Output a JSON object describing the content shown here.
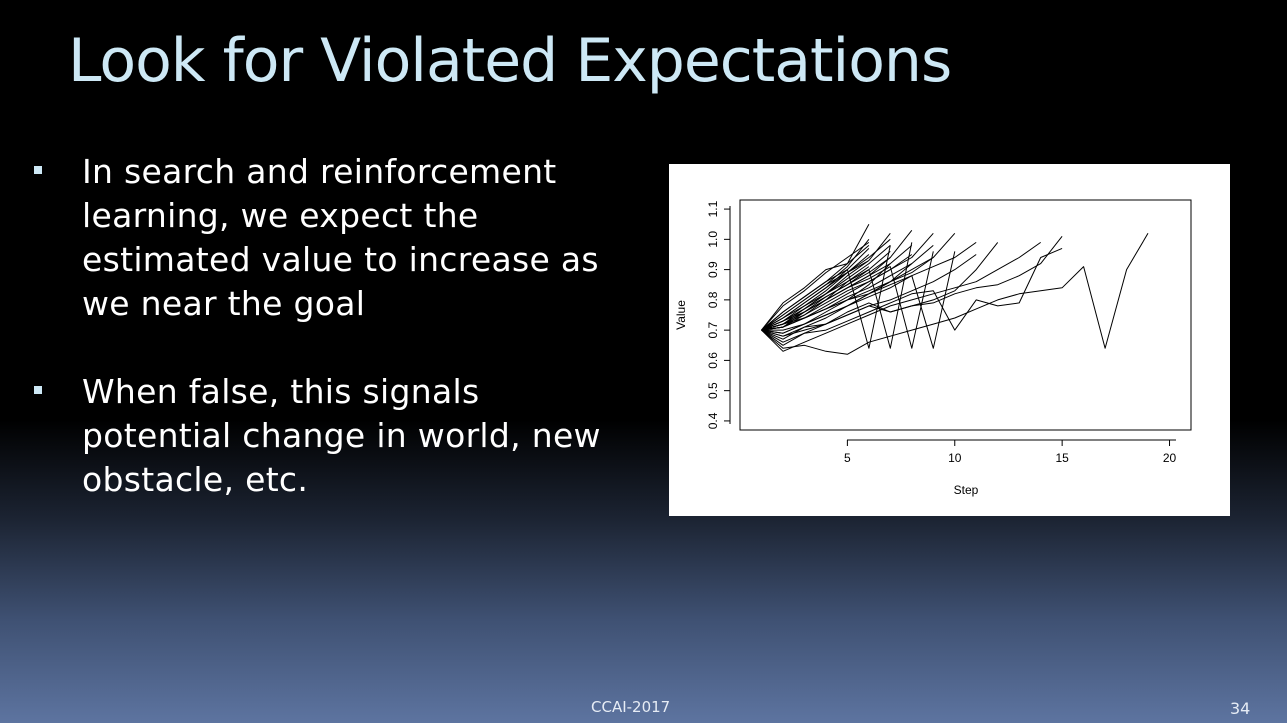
{
  "slide": {
    "title": "Look for Violated Expectations",
    "bullets": [
      "In search and reinforcement learning, we expect the estimated value to increase as we near the goal",
      "When false, this signals potential change in world, new obstacle, etc."
    ],
    "footer": "CCAI-2017",
    "page_number": "34"
  },
  "colors": {
    "background": "#000000",
    "title": "#cde8f5",
    "text": "#ffffff",
    "chart_line": "#000000"
  },
  "chart_data": {
    "type": "line",
    "title": "",
    "xlabel": "Step",
    "ylabel": "Value",
    "xlim": [
      0,
      21
    ],
    "ylim": [
      0.37,
      1.13
    ],
    "xticks": [
      5,
      10,
      15,
      20
    ],
    "yticks": [
      0.4,
      0.5,
      0.6,
      0.7,
      0.8,
      0.9,
      1.0,
      1.1
    ],
    "xtick_labels": [
      "5",
      "10",
      "15",
      "20"
    ],
    "ytick_labels": [
      "0.4",
      "0.5",
      "0.6",
      "0.7",
      "0.8",
      "0.9",
      "1.0",
      "1.1"
    ],
    "grid": false,
    "legend": "none",
    "series": [
      {
        "x": [
          1,
          2,
          3,
          4,
          5,
          6
        ],
        "values": [
          0.7,
          0.76,
          0.81,
          0.86,
          0.92,
          1.05
        ]
      },
      {
        "x": [
          1,
          2,
          3,
          4,
          5,
          6
        ],
        "values": [
          0.7,
          0.75,
          0.8,
          0.85,
          0.91,
          1.0
        ]
      },
      {
        "x": [
          1,
          2,
          3,
          4,
          5,
          6
        ],
        "values": [
          0.7,
          0.74,
          0.79,
          0.84,
          0.9,
          0.97
        ]
      },
      {
        "x": [
          1,
          2,
          3,
          4,
          5,
          6
        ],
        "values": [
          0.7,
          0.73,
          0.78,
          0.83,
          0.89,
          0.95
        ]
      },
      {
        "x": [
          1,
          2,
          3,
          4,
          5,
          6
        ],
        "values": [
          0.7,
          0.72,
          0.77,
          0.82,
          0.88,
          0.93
        ]
      },
      {
        "x": [
          1,
          2,
          3,
          4,
          5,
          6
        ],
        "values": [
          0.7,
          0.78,
          0.83,
          0.89,
          0.94,
          0.99
        ]
      },
      {
        "x": [
          1,
          2,
          3,
          4,
          5,
          6
        ],
        "values": [
          0.7,
          0.71,
          0.76,
          0.8,
          0.86,
          0.91
        ]
      },
      {
        "x": [
          1,
          2,
          3,
          4,
          5,
          6
        ],
        "values": [
          0.7,
          0.79,
          0.84,
          0.9,
          0.92,
          0.98
        ]
      },
      {
        "x": [
          1,
          2,
          3,
          4,
          5,
          6,
          7
        ],
        "values": [
          0.7,
          0.74,
          0.79,
          0.84,
          0.89,
          0.94,
          1.0
        ]
      },
      {
        "x": [
          1,
          2,
          3,
          4,
          5,
          6,
          7
        ],
        "values": [
          0.7,
          0.73,
          0.77,
          0.82,
          0.87,
          0.92,
          0.98
        ]
      },
      {
        "x": [
          1,
          2,
          3,
          4,
          5,
          6,
          7
        ],
        "values": [
          0.7,
          0.72,
          0.76,
          0.81,
          0.85,
          0.9,
          0.96
        ]
      },
      {
        "x": [
          1,
          2,
          3,
          4,
          5,
          6,
          7
        ],
        "values": [
          0.7,
          0.75,
          0.8,
          0.85,
          0.89,
          0.93,
          1.02
        ]
      },
      {
        "x": [
          1,
          2,
          3,
          4,
          5,
          6,
          7
        ],
        "values": [
          0.7,
          0.71,
          0.75,
          0.8,
          0.84,
          0.88,
          0.94
        ]
      },
      {
        "x": [
          1,
          2,
          3,
          4,
          5,
          6,
          7
        ],
        "values": [
          0.7,
          0.76,
          0.81,
          0.86,
          0.9,
          0.64,
          0.98
        ]
      },
      {
        "x": [
          1,
          2,
          3,
          4,
          5,
          6,
          7
        ],
        "values": [
          0.7,
          0.69,
          0.72,
          0.76,
          0.8,
          0.85,
          0.92
        ]
      },
      {
        "x": [
          1,
          2,
          3,
          4,
          5,
          6,
          7,
          8
        ],
        "values": [
          0.7,
          0.73,
          0.77,
          0.81,
          0.85,
          0.89,
          0.94,
          1.03
        ]
      },
      {
        "x": [
          1,
          2,
          3,
          4,
          5,
          6,
          7,
          8
        ],
        "values": [
          0.7,
          0.72,
          0.76,
          0.8,
          0.84,
          0.88,
          0.92,
          0.98
        ]
      },
      {
        "x": [
          1,
          2,
          3,
          4,
          5,
          6,
          7,
          8
        ],
        "values": [
          0.7,
          0.71,
          0.74,
          0.78,
          0.82,
          0.86,
          0.9,
          0.95
        ]
      },
      {
        "x": [
          1,
          2,
          3,
          4,
          5,
          6,
          7,
          8
        ],
        "values": [
          0.7,
          0.74,
          0.78,
          0.82,
          0.86,
          0.9,
          0.64,
          0.99
        ]
      },
      {
        "x": [
          1,
          2,
          3,
          4,
          5,
          6,
          7,
          8
        ],
        "values": [
          0.7,
          0.68,
          0.71,
          0.74,
          0.78,
          0.82,
          0.86,
          0.92
        ]
      },
      {
        "x": [
          1,
          2,
          3,
          4,
          5,
          6,
          7,
          8,
          9
        ],
        "values": [
          0.7,
          0.72,
          0.75,
          0.79,
          0.83,
          0.86,
          0.9,
          0.94,
          1.02
        ]
      },
      {
        "x": [
          1,
          2,
          3,
          4,
          5,
          6,
          7,
          8,
          9
        ],
        "values": [
          0.7,
          0.71,
          0.74,
          0.77,
          0.81,
          0.84,
          0.88,
          0.92,
          0.98
        ]
      },
      {
        "x": [
          1,
          2,
          3,
          4,
          5,
          6,
          7,
          8,
          9
        ],
        "values": [
          0.7,
          0.73,
          0.76,
          0.8,
          0.84,
          0.87,
          0.91,
          0.64,
          0.96
        ]
      },
      {
        "x": [
          1,
          2,
          3,
          4,
          5,
          6,
          7,
          8,
          9
        ],
        "values": [
          0.7,
          0.69,
          0.72,
          0.75,
          0.78,
          0.82,
          0.86,
          0.89,
          0.94
        ]
      },
      {
        "x": [
          1,
          2,
          3,
          4,
          5,
          6,
          7,
          8,
          9,
          10
        ],
        "values": [
          0.7,
          0.71,
          0.74,
          0.77,
          0.8,
          0.83,
          0.86,
          0.9,
          0.94,
          1.02
        ]
      },
      {
        "x": [
          1,
          2,
          3,
          4,
          5,
          6,
          7,
          8,
          9,
          10
        ],
        "values": [
          0.7,
          0.7,
          0.72,
          0.75,
          0.78,
          0.81,
          0.84,
          0.88,
          0.64,
          0.96
        ]
      },
      {
        "x": [
          1,
          2,
          3,
          4,
          5,
          6,
          7,
          8,
          9,
          10,
          11
        ],
        "values": [
          0.7,
          0.72,
          0.74,
          0.77,
          0.8,
          0.82,
          0.85,
          0.88,
          0.91,
          0.94,
          0.99
        ]
      },
      {
        "x": [
          1,
          2,
          3,
          4,
          5,
          6,
          7,
          8,
          9,
          10,
          11
        ],
        "values": [
          0.7,
          0.68,
          0.7,
          0.72,
          0.75,
          0.78,
          0.8,
          0.83,
          0.86,
          0.9,
          0.95
        ]
      },
      {
        "x": [
          1,
          2,
          3,
          4,
          5,
          6,
          7,
          8,
          9,
          10,
          11,
          12
        ],
        "values": [
          0.7,
          0.66,
          0.69,
          0.72,
          0.76,
          0.79,
          0.76,
          0.78,
          0.8,
          0.83,
          0.9,
          0.99
        ]
      },
      {
        "x": [
          1,
          2,
          3,
          4,
          5,
          6,
          7,
          8,
          9,
          10,
          11,
          12,
          13,
          14
        ],
        "values": [
          0.7,
          0.63,
          0.66,
          0.69,
          0.72,
          0.75,
          0.78,
          0.8,
          0.82,
          0.84,
          0.86,
          0.9,
          0.94,
          0.99
        ]
      },
      {
        "x": [
          1,
          2,
          3,
          4,
          5,
          6,
          7,
          8,
          9,
          10,
          11,
          12,
          13,
          14,
          15
        ],
        "values": [
          0.7,
          0.67,
          0.71,
          0.72,
          0.75,
          0.78,
          0.76,
          0.78,
          0.79,
          0.82,
          0.84,
          0.85,
          0.88,
          0.92,
          1.01
        ]
      },
      {
        "x": [
          1,
          2,
          3,
          4,
          5,
          6,
          7,
          8,
          9,
          10,
          11,
          12,
          13,
          14,
          15
        ],
        "values": [
          0.7,
          0.65,
          0.69,
          0.7,
          0.73,
          0.76,
          0.79,
          0.82,
          0.83,
          0.7,
          0.8,
          0.78,
          0.79,
          0.94,
          0.97
        ]
      },
      {
        "x": [
          1,
          2,
          3,
          4,
          5,
          6,
          7,
          8,
          9,
          10,
          11,
          12,
          13,
          14,
          15,
          16,
          17,
          18,
          19
        ],
        "values": [
          0.7,
          0.64,
          0.65,
          0.63,
          0.62,
          0.66,
          0.68,
          0.7,
          0.72,
          0.74,
          0.77,
          0.8,
          0.82,
          0.83,
          0.84,
          0.91,
          0.64,
          0.9,
          1.02
        ]
      }
    ]
  }
}
